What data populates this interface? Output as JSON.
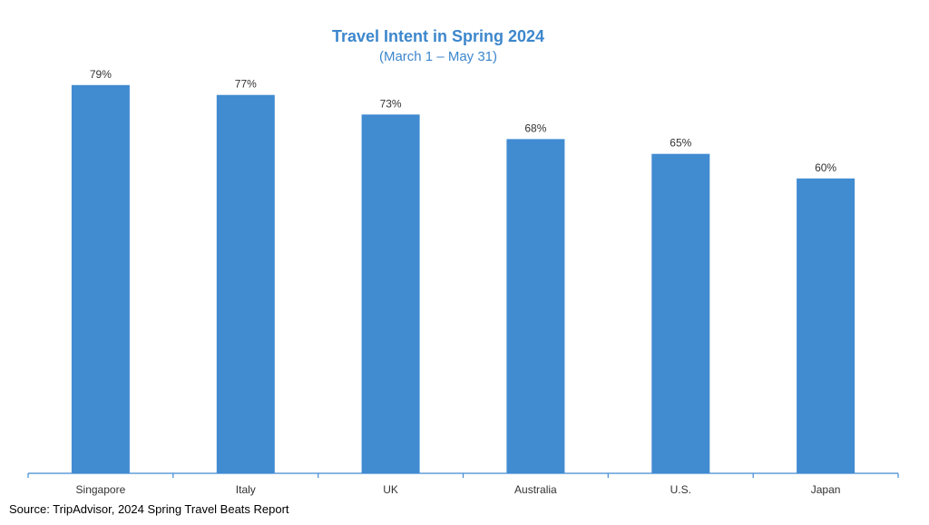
{
  "chart_data": {
    "type": "bar",
    "title": "Travel Intent in Spring 2024",
    "subtitle": "(March 1 – May 31)",
    "categories": [
      "Singapore",
      "Italy",
      "UK",
      "Australia",
      "U.S.",
      "Japan"
    ],
    "values": [
      79,
      77,
      73,
      68,
      65,
      60
    ],
    "data_labels": [
      "79%",
      "77%",
      "73%",
      "68%",
      "65%",
      "60%"
    ],
    "xlabel": "",
    "ylabel": "",
    "ylim": [
      0,
      80
    ],
    "unit": "%",
    "grid": false,
    "legend": "none",
    "bar_color": "#418bd1",
    "axis_color": "#418bd1"
  },
  "source": "Source: TripAdvisor, 2024 Spring Travel Beats Report"
}
